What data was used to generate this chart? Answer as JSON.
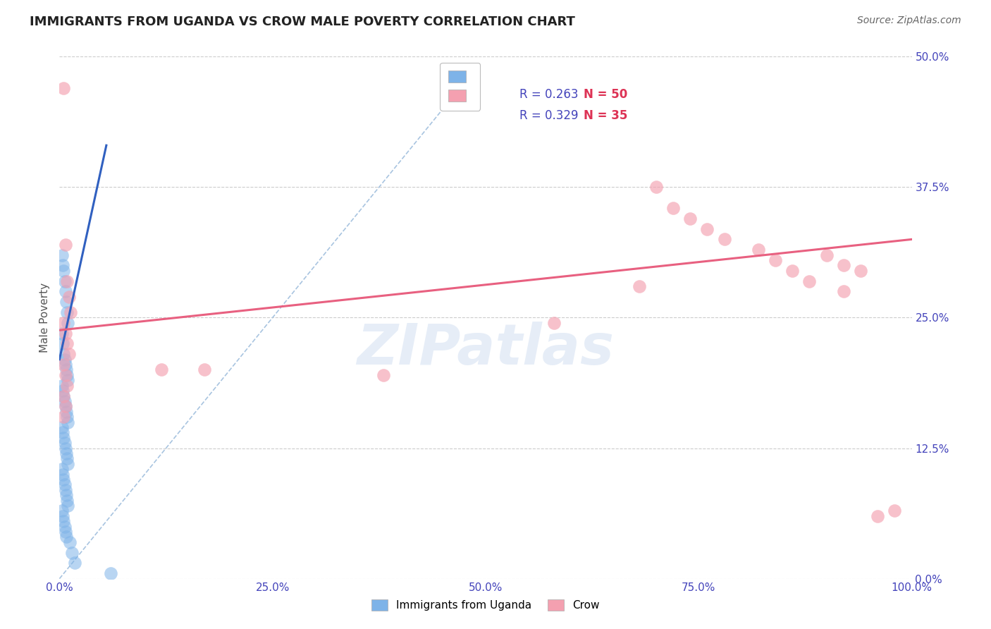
{
  "title": "IMMIGRANTS FROM UGANDA VS CROW MALE POVERTY CORRELATION CHART",
  "source": "Source: ZipAtlas.com",
  "ylabel": "Male Poverty",
  "watermark": "ZIPatlas",
  "legend_blue_r": "R = 0.263",
  "legend_blue_n": "N = 50",
  "legend_pink_r": "R = 0.329",
  "legend_pink_n": "N = 35",
  "legend_blue_label": "Immigrants from Uganda",
  "legend_pink_label": "Crow",
  "xlim": [
    0.0,
    1.0
  ],
  "ylim": [
    0.0,
    0.5
  ],
  "xticks": [
    0.0,
    0.25,
    0.5,
    0.75,
    1.0
  ],
  "xtick_labels": [
    "0.0%",
    "25.0%",
    "50.0%",
    "75.0%",
    "100.0%"
  ],
  "yticks": [
    0.0,
    0.125,
    0.25,
    0.375,
    0.5
  ],
  "ytick_labels": [
    "0.0%",
    "12.5%",
    "25.0%",
    "37.5%",
    "50.0%"
  ],
  "blue_x": [
    0.003,
    0.004,
    0.005,
    0.006,
    0.007,
    0.008,
    0.009,
    0.01,
    0.003,
    0.004,
    0.005,
    0.006,
    0.007,
    0.008,
    0.009,
    0.01,
    0.003,
    0.004,
    0.005,
    0.006,
    0.007,
    0.008,
    0.009,
    0.01,
    0.003,
    0.004,
    0.005,
    0.006,
    0.007,
    0.008,
    0.009,
    0.01,
    0.003,
    0.004,
    0.005,
    0.006,
    0.007,
    0.008,
    0.009,
    0.01,
    0.003,
    0.004,
    0.005,
    0.006,
    0.007,
    0.008,
    0.012,
    0.015,
    0.018,
    0.06
  ],
  "blue_y": [
    0.31,
    0.3,
    0.295,
    0.285,
    0.275,
    0.265,
    0.255,
    0.245,
    0.235,
    0.225,
    0.215,
    0.21,
    0.205,
    0.2,
    0.195,
    0.19,
    0.185,
    0.18,
    0.175,
    0.17,
    0.165,
    0.16,
    0.155,
    0.15,
    0.145,
    0.14,
    0.135,
    0.13,
    0.125,
    0.12,
    0.115,
    0.11,
    0.105,
    0.1,
    0.095,
    0.09,
    0.085,
    0.08,
    0.075,
    0.07,
    0.065,
    0.06,
    0.055,
    0.05,
    0.045,
    0.04,
    0.035,
    0.025,
    0.015,
    0.005
  ],
  "pink_x": [
    0.005,
    0.007,
    0.009,
    0.011,
    0.013,
    0.005,
    0.007,
    0.009,
    0.011,
    0.005,
    0.007,
    0.009,
    0.005,
    0.007,
    0.005,
    0.12,
    0.17,
    0.38,
    0.58,
    0.7,
    0.72,
    0.74,
    0.76,
    0.78,
    0.82,
    0.84,
    0.86,
    0.88,
    0.9,
    0.92,
    0.94,
    0.96,
    0.68,
    0.92,
    0.98
  ],
  "pink_y": [
    0.47,
    0.32,
    0.285,
    0.27,
    0.255,
    0.245,
    0.235,
    0.225,
    0.215,
    0.205,
    0.195,
    0.185,
    0.175,
    0.165,
    0.155,
    0.2,
    0.2,
    0.195,
    0.245,
    0.375,
    0.355,
    0.345,
    0.335,
    0.325,
    0.315,
    0.305,
    0.295,
    0.285,
    0.31,
    0.3,
    0.295,
    0.06,
    0.28,
    0.275,
    0.065
  ],
  "blue_line_x": [
    0.0,
    0.055
  ],
  "blue_line_y": [
    0.21,
    0.415
  ],
  "pink_line_x": [
    0.0,
    1.0
  ],
  "pink_line_y": [
    0.238,
    0.325
  ],
  "diagonal_line_x": [
    0.0,
    0.48
  ],
  "diagonal_line_y": [
    0.0,
    0.48
  ],
  "bg_color": "#ffffff",
  "blue_color": "#7EB3E8",
  "pink_color": "#F4A0B0",
  "blue_line_color": "#3060C0",
  "pink_line_color": "#E86080",
  "diagonal_color": "#A8C4E0",
  "grid_color": "#CCCCCC",
  "title_color": "#222222",
  "tick_label_color": "#4444BB",
  "source_color": "#666666",
  "legend_r_color": "#4444BB",
  "legend_n_color": "#DD3355"
}
